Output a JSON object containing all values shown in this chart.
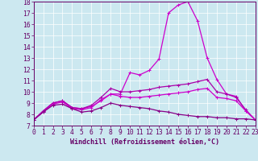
{
  "xlabel": "Windchill (Refroidissement éolien,°C)",
  "x": [
    0,
    1,
    2,
    3,
    4,
    5,
    6,
    7,
    8,
    9,
    10,
    11,
    12,
    13,
    14,
    15,
    16,
    17,
    18,
    19,
    20,
    21,
    22,
    23
  ],
  "series": [
    {
      "name": "top_curve",
      "y": [
        7.5,
        8.3,
        9.0,
        9.2,
        8.6,
        8.5,
        8.7,
        9.2,
        9.8,
        9.8,
        11.7,
        11.5,
        11.9,
        12.9,
        17.0,
        17.7,
        18.0,
        16.3,
        13.0,
        11.1,
        9.8,
        9.6,
        8.3,
        7.5
      ],
      "color": "#cc00cc",
      "linewidth": 0.9,
      "marker": "+"
    },
    {
      "name": "mid_upper",
      "y": [
        7.5,
        8.3,
        9.0,
        9.2,
        8.6,
        8.5,
        8.8,
        9.5,
        10.3,
        10.0,
        10.0,
        10.1,
        10.2,
        10.4,
        10.5,
        10.6,
        10.7,
        10.9,
        11.1,
        10.0,
        9.8,
        9.5,
        8.4,
        7.5
      ],
      "color": "#aa00aa",
      "linewidth": 0.9,
      "marker": "+"
    },
    {
      "name": "mid_lower",
      "y": [
        7.5,
        8.2,
        8.9,
        9.1,
        8.5,
        8.4,
        8.6,
        9.3,
        9.8,
        9.6,
        9.5,
        9.5,
        9.6,
        9.7,
        9.8,
        9.9,
        10.0,
        10.2,
        10.3,
        9.5,
        9.4,
        9.2,
        8.3,
        7.5
      ],
      "color": "#cc00cc",
      "linewidth": 0.9,
      "marker": "+"
    },
    {
      "name": "bottom",
      "y": [
        7.5,
        8.2,
        8.8,
        8.9,
        8.5,
        8.2,
        8.3,
        8.6,
        9.0,
        8.8,
        8.7,
        8.6,
        8.5,
        8.3,
        8.2,
        8.0,
        7.9,
        7.8,
        7.8,
        7.7,
        7.7,
        7.6,
        7.6,
        7.5
      ],
      "color": "#880088",
      "linewidth": 0.9,
      "marker": "+"
    }
  ],
  "ylim": [
    7,
    18
  ],
  "xlim": [
    0,
    23
  ],
  "yticks": [
    7,
    8,
    9,
    10,
    11,
    12,
    13,
    14,
    15,
    16,
    17,
    18
  ],
  "xticks": [
    0,
    1,
    2,
    3,
    4,
    5,
    6,
    7,
    8,
    9,
    10,
    11,
    12,
    13,
    14,
    15,
    16,
    17,
    18,
    19,
    20,
    21,
    22,
    23
  ],
  "bg_color": "#cce8f0",
  "grid_color": "#ffffff",
  "axis_color": "#660066",
  "tick_color": "#660066",
  "label_color": "#660066",
  "xlabel_fontsize": 6.0,
  "tick_fontsize": 5.8
}
